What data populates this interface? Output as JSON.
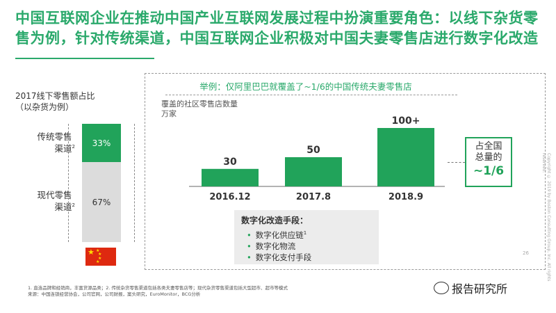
{
  "title": "中国互联网企业在推动中国产业互联网发展过程中扮演重要角色：以线下杂货零售为例，针对传统渠道，中国互联网企业积极对中国夫妻零售店进行数字化改造",
  "left": {
    "caption_line1": "2017线下零售额占比",
    "caption_line2": "（以杂货为例）",
    "traditional_label": "传统零售渠道",
    "traditional_sup": "2",
    "traditional_value": "33%",
    "modern_label": "现代零售渠道",
    "modern_sup": "2",
    "modern_value": "67%",
    "flag_icon": "china-flag-icon"
  },
  "panel": {
    "example_title": "举例：仅阿里巴巴就覆盖了~1/6的中国传统夫妻零售店",
    "ylabel_line1": "覆盖的社区零售店数量",
    "ylabel_line2": "万家"
  },
  "chart_data": {
    "type": "bar",
    "categories": [
      "2016.12",
      "2017.8",
      "2018.9"
    ],
    "values": [
      30,
      50,
      100
    ],
    "value_labels": [
      "30",
      "50",
      "100+"
    ],
    "ylabel": "覆盖的社区零售店数量 万家",
    "bar_color": "#21a35a"
  },
  "callout": {
    "line1": "占全国",
    "line2": "总量的",
    "value": "~1/6"
  },
  "means": {
    "title": "数字化改造手段：",
    "items": [
      "数字化供应链",
      "数字化物流",
      "数字化支付手段"
    ],
    "item1_sup": "1"
  },
  "footnote": {
    "line1": "1. 直连品牌和经销商，丰富货源品类；2. 传统杂货零售渠道包括各类夫妻零售店等；现代杂货零售渠道包括大型超市、超市等模式",
    "line2": "来源：中国连锁经营协会，公司官网，公司财报，案头研究，EuroMonitor，BCG分析"
  },
  "page_number": "26",
  "copyright": "Copyright © 2019 by Boston Consulting Group, Inc. All rights reserved.",
  "watermark": "报告研究所",
  "colors": {
    "accent": "#2aa96b",
    "bar": "#21a35a",
    "modern": "#dcdcdc"
  }
}
